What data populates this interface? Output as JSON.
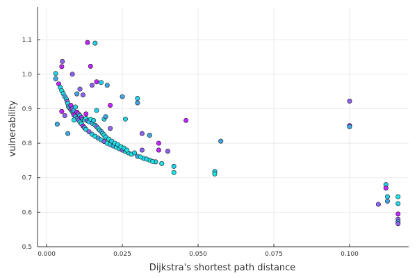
{
  "chart_data": {
    "type": "scatter",
    "title": "",
    "xlabel": "Dijkstra's shortest path distance",
    "ylabel": "vulnerability",
    "xlim": [
      -0.003,
      0.1195
    ],
    "ylim": [
      0.5,
      1.195
    ],
    "xticks": [
      0.0,
      0.025,
      0.05,
      0.075,
      0.1
    ],
    "xtick_labels": [
      "0.000",
      "0.025",
      "0.050",
      "0.075",
      "0.100"
    ],
    "yticks": [
      0.5,
      0.6,
      0.7,
      0.8,
      0.9,
      1.0,
      1.1
    ],
    "ytick_labels": [
      "0.5",
      "0.6",
      "0.7",
      "0.8",
      "0.9",
      "1.0",
      "1.1"
    ],
    "grid": true,
    "legend": "none",
    "colors": [
      "#c326ff",
      "#8c62ee",
      "#3fa6e3",
      "#24d1e6",
      "#1ee3e3"
    ],
    "points": [
      [
        0.003,
        1.002,
        3
      ],
      [
        0.003,
        0.987,
        2
      ],
      [
        0.004,
        0.972,
        0
      ],
      [
        0.0045,
        0.962,
        3
      ],
      [
        0.005,
        1.022,
        0
      ],
      [
        0.0052,
        1.037,
        1
      ],
      [
        0.005,
        0.952,
        4
      ],
      [
        0.0055,
        0.944,
        3
      ],
      [
        0.006,
        0.935,
        2
      ],
      [
        0.0065,
        0.928,
        3
      ],
      [
        0.0068,
        0.921,
        1
      ],
      [
        0.007,
        0.915,
        4
      ],
      [
        0.0072,
        0.907,
        3
      ],
      [
        0.0075,
        0.903,
        2
      ],
      [
        0.008,
        0.897,
        1
      ],
      [
        0.0085,
        0.891,
        3
      ],
      [
        0.0088,
        0.887,
        4
      ],
      [
        0.009,
        0.882,
        0
      ],
      [
        0.0095,
        0.877,
        3
      ],
      [
        0.01,
        0.872,
        2
      ],
      [
        0.0105,
        0.867,
        1
      ],
      [
        0.011,
        0.861,
        3
      ],
      [
        0.0115,
        0.856,
        4
      ],
      [
        0.012,
        0.85,
        0
      ],
      [
        0.0125,
        0.845,
        2
      ],
      [
        0.013,
        0.84,
        3
      ],
      [
        0.014,
        0.833,
        1
      ],
      [
        0.015,
        0.826,
        3
      ],
      [
        0.016,
        0.82,
        4
      ],
      [
        0.017,
        0.815,
        2
      ],
      [
        0.018,
        0.81,
        3
      ],
      [
        0.019,
        0.805,
        1
      ],
      [
        0.02,
        0.8,
        4
      ],
      [
        0.021,
        0.796,
        3
      ],
      [
        0.022,
        0.792,
        2
      ],
      [
        0.023,
        0.788,
        4
      ],
      [
        0.024,
        0.784,
        3
      ],
      [
        0.025,
        0.78,
        1
      ],
      [
        0.026,
        0.776,
        4
      ],
      [
        0.027,
        0.772,
        3
      ],
      [
        0.028,
        0.768,
        4
      ],
      [
        0.03,
        0.762,
        2
      ],
      [
        0.032,
        0.756,
        3
      ],
      [
        0.034,
        0.751,
        4
      ],
      [
        0.036,
        0.746,
        3
      ],
      [
        0.038,
        0.741,
        4
      ],
      [
        0.042,
        0.733,
        3
      ],
      [
        0.042,
        0.715,
        4
      ],
      [
        0.0555,
        0.718,
        3
      ],
      [
        0.0555,
        0.711,
        4
      ],
      [
        0.008,
        0.91,
        0
      ],
      [
        0.0085,
        0.9,
        1
      ],
      [
        0.009,
        0.895,
        2
      ],
      [
        0.0095,
        0.905,
        3
      ],
      [
        0.01,
        0.89,
        0
      ],
      [
        0.0105,
        0.885,
        1
      ],
      [
        0.011,
        0.88,
        3
      ],
      [
        0.0115,
        0.875,
        0
      ],
      [
        0.012,
        0.87,
        2
      ],
      [
        0.0125,
        0.868,
        3
      ],
      [
        0.013,
        0.872,
        4
      ],
      [
        0.0135,
        0.865,
        1
      ],
      [
        0.014,
        0.862,
        3
      ],
      [
        0.0145,
        0.87,
        4
      ],
      [
        0.015,
        0.858,
        2
      ],
      [
        0.0155,
        0.866,
        3
      ],
      [
        0.016,
        0.852,
        4
      ],
      [
        0.0165,
        0.848,
        1
      ],
      [
        0.017,
        0.843,
        3
      ],
      [
        0.0175,
        0.838,
        4
      ],
      [
        0.018,
        0.834,
        2
      ],
      [
        0.0185,
        0.828,
        3
      ],
      [
        0.019,
        0.824,
        4
      ],
      [
        0.0195,
        0.818,
        3
      ],
      [
        0.0205,
        0.812,
        4
      ],
      [
        0.0215,
        0.806,
        3
      ],
      [
        0.0225,
        0.8,
        4
      ],
      [
        0.0235,
        0.796,
        3
      ],
      [
        0.0245,
        0.79,
        4
      ],
      [
        0.0255,
        0.786,
        3
      ],
      [
        0.0265,
        0.78,
        4
      ],
      [
        0.029,
        0.772,
        3
      ],
      [
        0.031,
        0.76,
        4
      ],
      [
        0.033,
        0.754,
        3
      ],
      [
        0.035,
        0.747,
        4
      ],
      [
        0.0035,
        0.855,
        2
      ],
      [
        0.005,
        0.892,
        0
      ],
      [
        0.006,
        0.88,
        1
      ],
      [
        0.007,
        0.828,
        2
      ],
      [
        0.0085,
        1.0,
        1
      ],
      [
        0.009,
        0.867,
        4
      ],
      [
        0.01,
        0.943,
        2
      ],
      [
        0.011,
        0.957,
        1
      ],
      [
        0.012,
        0.94,
        1
      ],
      [
        0.013,
        0.885,
        0
      ],
      [
        0.0135,
        1.092,
        0
      ],
      [
        0.0145,
        1.023,
        0
      ],
      [
        0.015,
        0.968,
        1
      ],
      [
        0.016,
        1.09,
        3
      ],
      [
        0.0165,
        0.978,
        0
      ],
      [
        0.0165,
        0.895,
        3
      ],
      [
        0.018,
        0.976,
        3
      ],
      [
        0.019,
        0.87,
        3
      ],
      [
        0.0195,
        0.877,
        2
      ],
      [
        0.02,
        0.968,
        2
      ],
      [
        0.021,
        0.91,
        0
      ],
      [
        0.021,
        0.843,
        1
      ],
      [
        0.025,
        0.935,
        2
      ],
      [
        0.026,
        0.87,
        3
      ],
      [
        0.03,
        0.93,
        3
      ],
      [
        0.03,
        0.917,
        2
      ],
      [
        0.0315,
        0.828,
        1
      ],
      [
        0.0315,
        0.78,
        1
      ],
      [
        0.034,
        0.823,
        2
      ],
      [
        0.037,
        0.8,
        0
      ],
      [
        0.037,
        0.78,
        0
      ],
      [
        0.04,
        0.777,
        1
      ],
      [
        0.046,
        0.866,
        0
      ],
      [
        0.0575,
        0.806,
        2
      ],
      [
        0.1,
        0.922,
        1
      ],
      [
        0.1,
        0.851,
        0
      ],
      [
        0.1,
        0.848,
        2
      ],
      [
        0.1095,
        0.623,
        1
      ],
      [
        0.112,
        0.68,
        3
      ],
      [
        0.112,
        0.67,
        0
      ],
      [
        0.1125,
        0.645,
        3
      ],
      [
        0.1125,
        0.632,
        2
      ],
      [
        0.116,
        0.645,
        4
      ],
      [
        0.116,
        0.625,
        3
      ],
      [
        0.116,
        0.595,
        0
      ],
      [
        0.116,
        0.58,
        1
      ],
      [
        0.116,
        0.572,
        2
      ],
      [
        0.116,
        0.567,
        1
      ]
    ]
  }
}
